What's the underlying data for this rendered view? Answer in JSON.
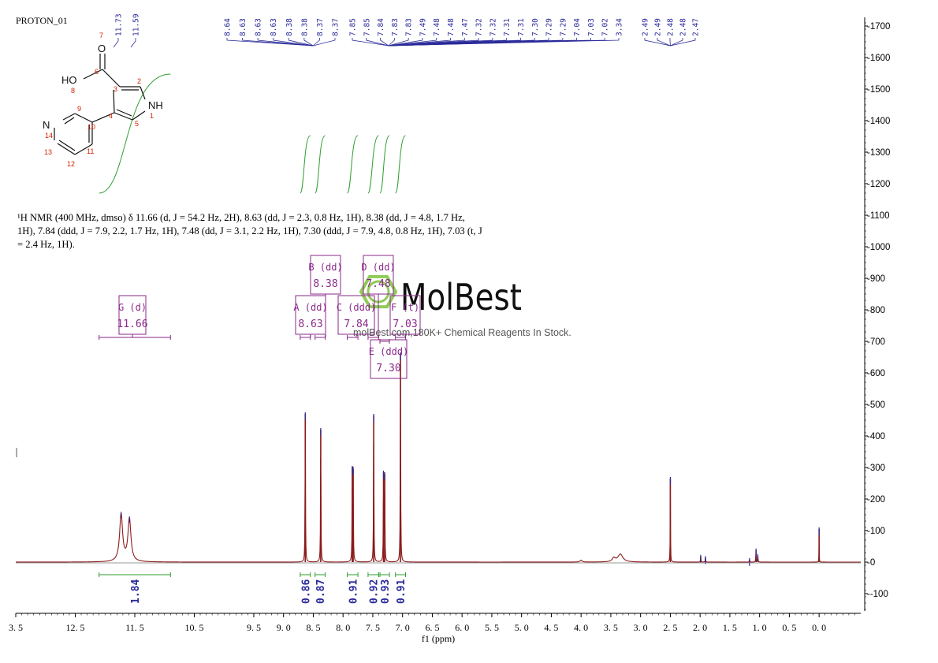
{
  "sample_name": "PROTON_01",
  "nmr_description": "¹H NMR (400 MHz, dmso) δ 11.66 (d, J = 54.2 Hz, 2H), 8.63 (dd, J = 2.3, 0.8 Hz, 1H), 8.38 (dd, J = 4.8, 1.7 Hz, 1H), 7.84 (ddd, J = 7.9, 2.2, 1.7 Hz, 1H), 7.48 (dd, J = 3.1, 2.2 Hz, 1H), 7.30 (ddd, J = 7.9, 4.8, 0.8 Hz, 1H), 7.03 (t, J = 2.4 Hz, 1H).",
  "watermark": {
    "brand": "MolBest",
    "tagline": "molBest.com,180K+ Chemical Reagents In Stock."
  },
  "molecule_labels": {
    "oh": "HO",
    "nh": "NH",
    "n": "N",
    "o": "O",
    "numbers": [
      "1",
      "2",
      "3",
      "4",
      "5",
      "6",
      "7",
      "8",
      "9",
      "10",
      "11",
      "12",
      "13",
      "14"
    ]
  },
  "colors": {
    "spectrum": "#8b1a1a",
    "peak_label": "#2b2b9a",
    "integral": "#2e9e2e",
    "multiplet": "#8a2a8a",
    "watermark": "#7dc23a",
    "atom_number": "#cc2200"
  },
  "chart_data": {
    "type": "line",
    "xlabel": "f1 (ppm)",
    "x_reversed": true,
    "xlim": [
      13.5,
      -0.7
    ],
    "ylim": [
      -150,
      1750
    ],
    "x_ticks": [
      {
        "v": 13.5,
        "label": "3. 5"
      },
      {
        "v": 12.5,
        "label": "12. 5"
      },
      {
        "v": 11.5,
        "label": "11. 5"
      },
      {
        "v": 10.5,
        "label": "10. 5"
      },
      {
        "v": 9.5,
        "label": "9. 5"
      },
      {
        "v": 9.0,
        "label": "9. 0"
      },
      {
        "v": 8.5,
        "label": "8. 5"
      },
      {
        "v": 8.0,
        "label": "8. 0"
      },
      {
        "v": 7.5,
        "label": "7. 5"
      },
      {
        "v": 7.0,
        "label": "7. 0"
      },
      {
        "v": 6.5,
        "label": "6. 5"
      },
      {
        "v": 6.0,
        "label": "6. 0"
      },
      {
        "v": 5.5,
        "label": "5. 5"
      },
      {
        "v": 5.0,
        "label": "5. 0"
      },
      {
        "v": 4.5,
        "label": "4. 5"
      },
      {
        "v": 4.0,
        "label": "4. 0"
      },
      {
        "v": 3.5,
        "label": "3. 5"
      },
      {
        "v": 3.0,
        "label": "3. 0"
      },
      {
        "v": 2.5,
        "label": "2. 5"
      },
      {
        "v": 2.0,
        "label": "2. 0"
      },
      {
        "v": 1.5,
        "label": "1. 5"
      },
      {
        "v": 1.0,
        "label": "1. 0"
      },
      {
        "v": 0.5,
        "label": "0. 5"
      },
      {
        "v": 0.0,
        "label": "0. 0"
      }
    ],
    "y_ticks": [
      {
        "v": 1700,
        "label": "-1700"
      },
      {
        "v": 1600,
        "label": "-1600"
      },
      {
        "v": 1500,
        "label": "-1500"
      },
      {
        "v": 1400,
        "label": "-1400"
      },
      {
        "v": 1300,
        "label": "-1300"
      },
      {
        "v": 1200,
        "label": "-1200"
      },
      {
        "v": 1100,
        "label": "-1100"
      },
      {
        "v": 1000,
        "label": "-1000"
      },
      {
        "v": 900,
        "label": "-900"
      },
      {
        "v": 800,
        "label": "-800"
      },
      {
        "v": 700,
        "label": "-700"
      },
      {
        "v": 600,
        "label": "-600"
      },
      {
        "v": 500,
        "label": "-500"
      },
      {
        "v": 400,
        "label": "-400"
      },
      {
        "v": 300,
        "label": "-300"
      },
      {
        "v": 200,
        "label": "-200"
      },
      {
        "v": 100,
        "label": "-100"
      },
      {
        "v": 0,
        "label": "-0"
      },
      {
        "v": -100,
        "label": "--100"
      }
    ],
    "peaks": [
      {
        "ppm": 11.73,
        "height": 150,
        "width": 0.03
      },
      {
        "ppm": 11.59,
        "height": 135,
        "width": 0.03
      },
      {
        "ppm": 8.635,
        "height": 470,
        "width": 0.004
      },
      {
        "ppm": 8.375,
        "height": 420,
        "width": 0.004
      },
      {
        "ppm": 7.845,
        "height": 300,
        "width": 0.004
      },
      {
        "ppm": 7.83,
        "height": 295,
        "width": 0.004
      },
      {
        "ppm": 7.485,
        "height": 465,
        "width": 0.004
      },
      {
        "ppm": 7.32,
        "height": 285,
        "width": 0.004
      },
      {
        "ppm": 7.3,
        "height": 280,
        "width": 0.004
      },
      {
        "ppm": 7.035,
        "height": 660,
        "width": 0.004
      },
      {
        "ppm": 4.0,
        "height": 6,
        "width": 0.02
      },
      {
        "ppm": 3.45,
        "height": 12,
        "width": 0.03
      },
      {
        "ppm": 3.34,
        "height": 25,
        "width": 0.05
      },
      {
        "ppm": 2.5,
        "height": 265,
        "width": 0.003
      },
      {
        "ppm": 1.99,
        "height": 18,
        "width": 0.004
      },
      {
        "ppm": 1.91,
        "height": 14,
        "width": 0.004
      },
      {
        "ppm": 1.17,
        "height": 8,
        "width": 0.004
      },
      {
        "ppm": 1.06,
        "height": 38,
        "width": 0.004
      },
      {
        "ppm": 1.03,
        "height": 20,
        "width": 0.004
      },
      {
        "ppm": 0.0,
        "height": 105,
        "width": 0.002
      }
    ],
    "peak_labels": [
      {
        "group": "a",
        "labels": [
          "11.73",
          "11.59"
        ],
        "targets": [
          11.73,
          11.59
        ]
      },
      {
        "group": "b",
        "labels": [
          "8.64",
          "8.63",
          "8.63",
          "8.63",
          "8.38",
          "8.38",
          "8.37",
          "8.37"
        ],
        "targets": [
          8.635,
          8.635,
          8.63,
          8.63,
          8.38,
          8.38,
          8.37,
          8.37
        ]
      },
      {
        "group": "c",
        "labels": [
          "7.85",
          "7.85",
          "7.84",
          "7.83",
          "7.83",
          "7.49",
          "7.48",
          "7.48",
          "7.47",
          "7.32",
          "7.32",
          "7.31",
          "7.31",
          "7.30",
          "7.29",
          "7.29",
          "7.04",
          "7.03",
          "7.02",
          "3.34"
        ],
        "targets": [
          7.85,
          7.85,
          7.84,
          7.83,
          7.83,
          7.49,
          7.48,
          7.48,
          7.47,
          7.32,
          7.32,
          7.31,
          7.31,
          7.3,
          7.29,
          7.29,
          7.04,
          7.03,
          7.02,
          3.34
        ]
      },
      {
        "group": "d",
        "labels": [
          "2.49",
          "2.49",
          "2.48",
          "2.48",
          "2.47"
        ],
        "targets": [
          2.5,
          2.5,
          2.5,
          2.5,
          2.5
        ]
      }
    ],
    "integrals": [
      {
        "from": 12.1,
        "to": 10.9,
        "value": "1.84"
      },
      {
        "from": 8.72,
        "to": 8.55,
        "value": "0.86"
      },
      {
        "from": 8.47,
        "to": 8.3,
        "value": "0.87"
      },
      {
        "from": 7.93,
        "to": 7.75,
        "value": "0.91"
      },
      {
        "from": 7.58,
        "to": 7.4,
        "value": "0.92"
      },
      {
        "from": 7.38,
        "to": 7.22,
        "value": "0.93"
      },
      {
        "from": 7.12,
        "to": 6.95,
        "value": "0.91"
      }
    ],
    "multiplets": [
      {
        "id": "G",
        "type": "d",
        "shift": "11.66",
        "label": "G (d)",
        "range": [
          12.1,
          10.9
        ]
      },
      {
        "id": "A",
        "type": "dd",
        "shift": "8.63",
        "label": "A (dd)",
        "range": [
          8.72,
          8.55
        ]
      },
      {
        "id": "B",
        "type": "dd",
        "shift": "8.38",
        "label": "B (dd)",
        "range": [
          8.47,
          8.3
        ]
      },
      {
        "id": "C",
        "type": "ddd",
        "shift": "7.84",
        "label": "C (ddd)",
        "range": [
          7.93,
          7.75
        ]
      },
      {
        "id": "D",
        "type": "dd",
        "shift": "7.48",
        "label": "D (dd)",
        "range": [
          7.58,
          7.4
        ]
      },
      {
        "id": "F",
        "type": "t",
        "shift": "7.03",
        "label": "F (t)",
        "range": [
          7.12,
          6.95
        ]
      },
      {
        "id": "E",
        "type": "ddd",
        "shift": "7.30",
        "label": "E (ddd)",
        "range": [
          7.38,
          7.22
        ]
      }
    ]
  }
}
